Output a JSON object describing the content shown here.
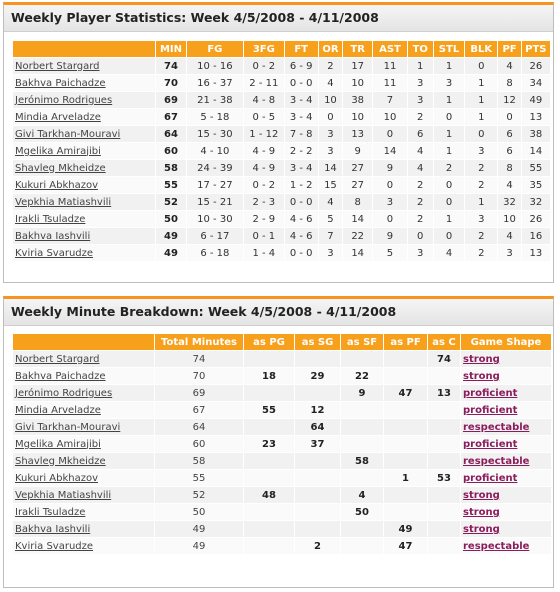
{
  "stats_panel": {
    "title": "Weekly Player Statistics: Week 4/5/2008 - 4/11/2008",
    "headers": [
      "",
      "MIN",
      "FG",
      "3FG",
      "FT",
      "OR",
      "TR",
      "AST",
      "TO",
      "STL",
      "BLK",
      "PF",
      "PTS"
    ],
    "rows": [
      {
        "name": "Norbert Stargard",
        "min": "74",
        "fg": "10 - 16",
        "tfg": "0 - 2",
        "ft": "6 - 9",
        "or": "2",
        "tr": "17",
        "ast": "11",
        "to": "1",
        "stl": "1",
        "blk": "0",
        "pf": "4",
        "pts": "26"
      },
      {
        "name": "Bakhva Paichadze",
        "min": "70",
        "fg": "16 - 37",
        "tfg": "2 - 11",
        "ft": "0 - 0",
        "or": "4",
        "tr": "10",
        "ast": "11",
        "to": "3",
        "stl": "3",
        "blk": "1",
        "pf": "8",
        "pts": "34"
      },
      {
        "name": "Jerónimo Rodrigues",
        "min": "69",
        "fg": "21 - 38",
        "tfg": "4 - 8",
        "ft": "3 - 4",
        "or": "10",
        "tr": "38",
        "ast": "7",
        "to": "3",
        "stl": "1",
        "blk": "1",
        "pf": "12",
        "pts": "49"
      },
      {
        "name": "Mindia Arveladze",
        "min": "67",
        "fg": "5 - 18",
        "tfg": "0 - 5",
        "ft": "3 - 4",
        "or": "0",
        "tr": "10",
        "ast": "10",
        "to": "2",
        "stl": "0",
        "blk": "1",
        "pf": "0",
        "pts": "13"
      },
      {
        "name": "Givi Tarkhan-Mouravi",
        "min": "64",
        "fg": "15 - 30",
        "tfg": "1 - 12",
        "ft": "7 - 8",
        "or": "3",
        "tr": "13",
        "ast": "0",
        "to": "6",
        "stl": "1",
        "blk": "0",
        "pf": "6",
        "pts": "38"
      },
      {
        "name": "Mgelika Amirajibi",
        "min": "60",
        "fg": "4 - 10",
        "tfg": "4 - 9",
        "ft": "2 - 2",
        "or": "3",
        "tr": "9",
        "ast": "14",
        "to": "4",
        "stl": "1",
        "blk": "3",
        "pf": "6",
        "pts": "14"
      },
      {
        "name": "Shavleg Mkheidze",
        "min": "58",
        "fg": "24 - 39",
        "tfg": "4 - 9",
        "ft": "3 - 4",
        "or": "14",
        "tr": "27",
        "ast": "9",
        "to": "4",
        "stl": "2",
        "blk": "2",
        "pf": "8",
        "pts": "55"
      },
      {
        "name": "Kukuri Abkhazov",
        "min": "55",
        "fg": "17 - 27",
        "tfg": "0 - 2",
        "ft": "1 - 2",
        "or": "15",
        "tr": "27",
        "ast": "0",
        "to": "2",
        "stl": "0",
        "blk": "2",
        "pf": "4",
        "pts": "35"
      },
      {
        "name": "Vepkhia Matiashvili",
        "min": "52",
        "fg": "15 - 21",
        "tfg": "2 - 3",
        "ft": "0 - 0",
        "or": "4",
        "tr": "8",
        "ast": "3",
        "to": "2",
        "stl": "0",
        "blk": "1",
        "pf": "32",
        "pts": "32"
      },
      {
        "name": "Irakli Tsuladze",
        "min": "50",
        "fg": "10 - 30",
        "tfg": "2 - 9",
        "ft": "4 - 6",
        "or": "5",
        "tr": "14",
        "ast": "0",
        "to": "2",
        "stl": "1",
        "blk": "3",
        "pf": "10",
        "pts": "26"
      },
      {
        "name": "Bakhva Iashvili",
        "min": "49",
        "fg": "6 - 17",
        "tfg": "0 - 1",
        "ft": "4 - 6",
        "or": "7",
        "tr": "22",
        "ast": "9",
        "to": "0",
        "stl": "0",
        "blk": "2",
        "pf": "4",
        "pts": "16"
      },
      {
        "name": "Kviria Svarudze",
        "min": "49",
        "fg": "6 - 18",
        "tfg": "1 - 4",
        "ft": "0 - 0",
        "or": "3",
        "tr": "14",
        "ast": "5",
        "to": "3",
        "stl": "4",
        "blk": "2",
        "pf": "3",
        "pts": "13"
      }
    ]
  },
  "minutes_panel": {
    "title": "Weekly Minute Breakdown: Week 4/5/2008 - 4/11/2008",
    "headers": [
      "",
      "Total Minutes",
      "as PG",
      "as SG",
      "as SF",
      "as PF",
      "as C",
      "Game Shape"
    ],
    "rows": [
      {
        "name": "Norbert Stargard",
        "total": "74",
        "pg": "",
        "sg": "",
        "sf": "",
        "pf": "",
        "c": "74",
        "shape": "strong"
      },
      {
        "name": "Bakhva Paichadze",
        "total": "70",
        "pg": "18",
        "sg": "29",
        "sf": "22",
        "pf": "",
        "c": "",
        "shape": "strong"
      },
      {
        "name": "Jerónimo Rodrigues",
        "total": "69",
        "pg": "",
        "sg": "",
        "sf": "9",
        "pf": "47",
        "c": "13",
        "shape": "proficient"
      },
      {
        "name": "Mindia Arveladze",
        "total": "67",
        "pg": "55",
        "sg": "12",
        "sf": "",
        "pf": "",
        "c": "",
        "shape": "proficient"
      },
      {
        "name": "Givi Tarkhan-Mouravi",
        "total": "64",
        "pg": "",
        "sg": "64",
        "sf": "",
        "pf": "",
        "c": "",
        "shape": "respectable"
      },
      {
        "name": "Mgelika Amirajibi",
        "total": "60",
        "pg": "23",
        "sg": "37",
        "sf": "",
        "pf": "",
        "c": "",
        "shape": "proficient"
      },
      {
        "name": "Shavleg Mkheidze",
        "total": "58",
        "pg": "",
        "sg": "",
        "sf": "58",
        "pf": "",
        "c": "",
        "shape": "respectable"
      },
      {
        "name": "Kukuri Abkhazov",
        "total": "55",
        "pg": "",
        "sg": "",
        "sf": "",
        "pf": "1",
        "c": "53",
        "shape": "proficient"
      },
      {
        "name": "Vepkhia Matiashvili",
        "total": "52",
        "pg": "48",
        "sg": "",
        "sf": "4",
        "pf": "",
        "c": "",
        "shape": "strong"
      },
      {
        "name": "Irakli Tsuladze",
        "total": "50",
        "pg": "",
        "sg": "",
        "sf": "50",
        "pf": "",
        "c": "",
        "shape": "strong"
      },
      {
        "name": "Bakhva Iashvili",
        "total": "49",
        "pg": "",
        "sg": "",
        "sf": "",
        "pf": "49",
        "c": "",
        "shape": "strong"
      },
      {
        "name": "Kviria Svarudze",
        "total": "49",
        "pg": "",
        "sg": "2",
        "sf": "",
        "pf": "47",
        "c": "",
        "shape": "respectable"
      }
    ]
  },
  "colors": {
    "accent": "#f7931e",
    "header_bg": "#f7a01c",
    "shape_link": "#8b1c5c"
  }
}
